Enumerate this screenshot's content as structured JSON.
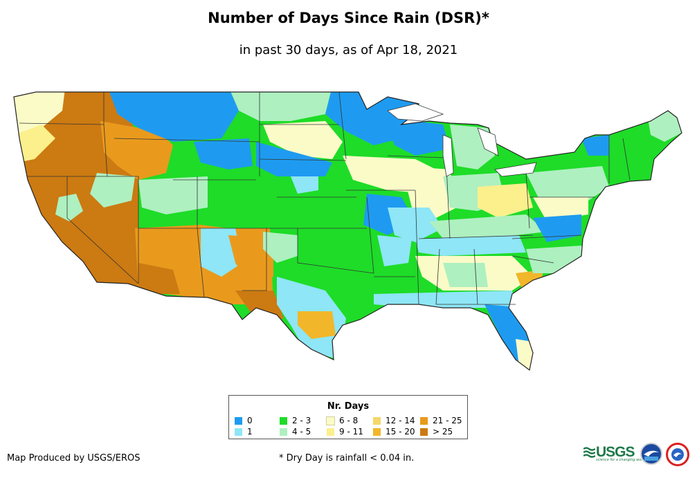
{
  "title": "Number of Days Since Rain (DSR)*",
  "subtitle": "in past 30 days, as of Apr 18, 2021",
  "legend": {
    "title": "Nr. Days",
    "items": [
      {
        "label": "0",
        "color": "#1e9bf0"
      },
      {
        "label": "1",
        "color": "#8ee6f6"
      },
      {
        "label": "2 - 3",
        "color": "#1edc28"
      },
      {
        "label": "4 - 5",
        "color": "#aef0c0"
      },
      {
        "label": "6 - 8",
        "color": "#fbfbc8"
      },
      {
        "label": "9 - 11",
        "color": "#fbf08c"
      },
      {
        "label": "12 - 14",
        "color": "#f4d768"
      },
      {
        "label": "15 - 20",
        "color": "#f2b62a"
      },
      {
        "label": "21 - 25",
        "color": "#e99a1d"
      },
      {
        "label": "> 25",
        "color": "#cc7a12"
      }
    ]
  },
  "credit": "Map Produced by USGS/EROS",
  "footnote": "* Dry Day is rainfall < 0.04 in.",
  "logos": {
    "usgs_text": "USGS",
    "usgs_tagline": "science for a changing world"
  },
  "colors": {
    "state_border": "#333333"
  }
}
